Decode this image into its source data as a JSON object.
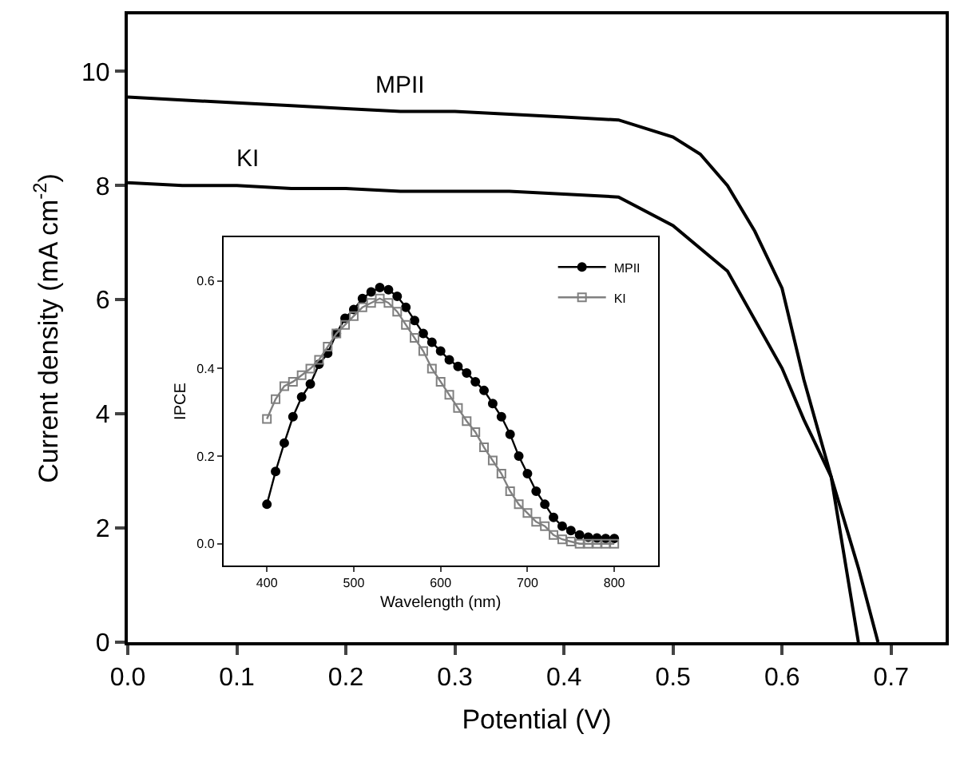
{
  "chart_data": [
    {
      "type": "line",
      "xlabel": "Potential (V)",
      "ylabel": "Current density (mA cm$^{-2}$)",
      "xlim": [
        0,
        0.75
      ],
      "xticks": [
        {
          "value": 0,
          "label": "0.0"
        },
        0.1,
        0.2,
        0.3,
        0.4,
        0.5,
        0.6,
        0.7
      ],
      "ylim": [
        0,
        11
      ],
      "yticks": [
        0,
        2,
        4,
        6,
        8,
        10
      ],
      "legend": false,
      "marker": "none",
      "line_style": "solid",
      "series": [
        {
          "color": "#000000",
          "x": [
            0,
            0.05,
            0.1,
            0.15,
            0.2,
            0.25,
            0.3,
            0.35,
            0.4,
            0.45,
            0.5,
            0.525,
            0.55,
            0.575,
            0.6,
            0.62,
            0.645,
            0.67
          ],
          "values": [
            9.55,
            9.5,
            9.45,
            9.4,
            9.35,
            9.3,
            9.3,
            9.25,
            9.2,
            9.15,
            8.85,
            8.55,
            8.0,
            7.2,
            6.2,
            4.6,
            2.9,
            0
          ]
        },
        {
          "color": "#000000",
          "x": [
            0,
            0.05,
            0.1,
            0.15,
            0.2,
            0.25,
            0.3,
            0.35,
            0.4,
            0.45,
            0.5,
            0.55,
            0.6,
            0.62,
            0.645,
            0.67,
            0.688
          ],
          "values": [
            8.05,
            8.0,
            8.0,
            7.95,
            7.95,
            7.9,
            7.9,
            7.9,
            7.85,
            7.8,
            7.3,
            6.5,
            4.8,
            3.9,
            2.9,
            1.3,
            0
          ]
        }
      ],
      "annotations": [
        {
          "text": "MPII",
          "x": 0.25,
          "y": 9.3
        },
        {
          "text": "KI",
          "x": 0.11,
          "y": 8.0
        }
      ]
    },
    {
      "type": "line",
      "xlabel": "Wavelength (nm)",
      "ylabel": "IPCE",
      "xlim": [
        350,
        850
      ],
      "xticks": [
        400,
        500,
        600,
        700,
        800
      ],
      "ylim": [
        -0.05,
        0.7
      ],
      "yticks": [
        {
          "value": 0,
          "label": "0.0"
        },
        0.2,
        0.4,
        0.6
      ],
      "legend": "top right",
      "line_style": "solid",
      "series": [
        {
          "name": "MPII",
          "color": "#000000",
          "marker": "circle",
          "x": [
            400,
            410,
            420,
            430,
            440,
            450,
            460,
            470,
            480,
            490,
            500,
            510,
            520,
            530,
            540,
            550,
            560,
            570,
            580,
            590,
            600,
            610,
            620,
            630,
            640,
            650,
            660,
            670,
            680,
            690,
            700,
            710,
            720,
            730,
            740,
            750,
            760,
            770,
            780,
            790,
            800
          ],
          "values": [
            0.09,
            0.165,
            0.23,
            0.29,
            0.335,
            0.365,
            0.41,
            0.435,
            0.48,
            0.515,
            0.535,
            0.56,
            0.575,
            0.585,
            0.58,
            0.565,
            0.54,
            0.51,
            0.48,
            0.46,
            0.44,
            0.42,
            0.405,
            0.39,
            0.37,
            0.35,
            0.32,
            0.29,
            0.25,
            0.2,
            0.16,
            0.12,
            0.09,
            0.06,
            0.04,
            0.03,
            0.02,
            0.015,
            0.013,
            0.012,
            0.012
          ]
        },
        {
          "name": "KI",
          "color": "#808080",
          "marker": "square",
          "x": [
            400,
            410,
            420,
            430,
            440,
            450,
            460,
            470,
            480,
            490,
            500,
            510,
            520,
            530,
            540,
            550,
            560,
            570,
            580,
            590,
            600,
            610,
            620,
            630,
            640,
            650,
            660,
            670,
            680,
            690,
            700,
            710,
            720,
            730,
            740,
            750,
            760,
            770,
            780,
            790,
            800
          ],
          "values": [
            0.285,
            0.33,
            0.36,
            0.37,
            0.385,
            0.4,
            0.42,
            0.45,
            0.48,
            0.5,
            0.52,
            0.54,
            0.55,
            0.56,
            0.55,
            0.53,
            0.5,
            0.47,
            0.44,
            0.4,
            0.37,
            0.34,
            0.31,
            0.28,
            0.255,
            0.22,
            0.19,
            0.16,
            0.12,
            0.09,
            0.07,
            0.05,
            0.04,
            0.02,
            0.01,
            0.005,
            0,
            0,
            0,
            0,
            0
          ]
        }
      ]
    }
  ]
}
